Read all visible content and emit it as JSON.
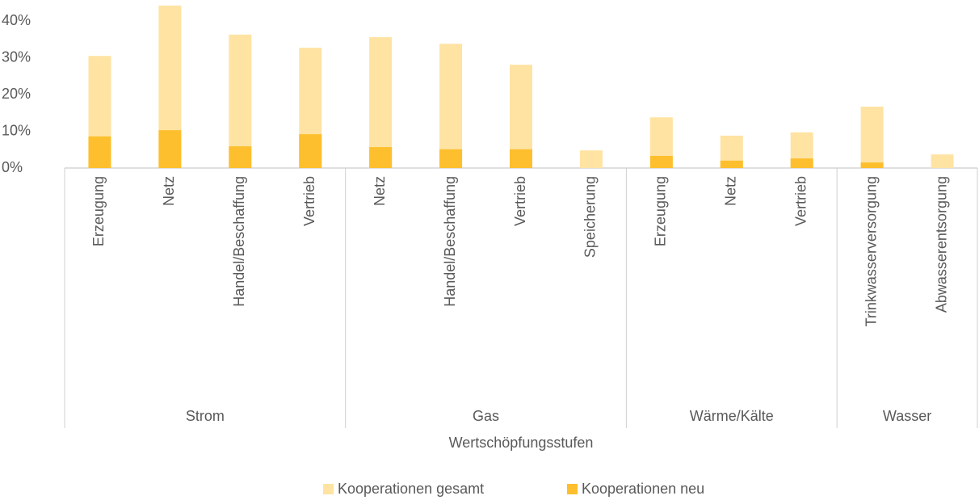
{
  "chart_data": {
    "type": "bar",
    "x_label": "Wertschöpfungsstufen",
    "groups": [
      {
        "name": "Strom",
        "categories": [
          "Erzeugung",
          "Netz",
          "Handel/Beschaffung",
          "Vertrieb"
        ]
      },
      {
        "name": "Gas",
        "categories": [
          "Netz",
          "Handel/Beschaffung",
          "Vertrieb",
          "Speicherung"
        ]
      },
      {
        "name": "Wärme/Kälte",
        "categories": [
          "Erzeugung",
          "Netz",
          "Vertrieb"
        ]
      },
      {
        "name": "Wasser",
        "categories": [
          "Trinkwasserversorgung",
          "Abwasserentsorgung"
        ]
      }
    ],
    "series": [
      {
        "name": "Kooperationen gesamt",
        "color": "#ffe3a3",
        "values": [
          30.5,
          44.2,
          36.3,
          32.7,
          35.6,
          33.8,
          28.1,
          4.8,
          13.8,
          8.8,
          9.7,
          16.7,
          3.7
        ]
      },
      {
        "name": "Kooperationen neu",
        "color": "#fdbf2d",
        "values": [
          8.6,
          10.3,
          5.9,
          9.2,
          5.7,
          5.1,
          5.1,
          0,
          3.3,
          2,
          2.6,
          1.5,
          0
        ]
      }
    ],
    "ylim": [
      0,
      45
    ],
    "yticks": [
      {
        "value": 0,
        "label": "0%"
      },
      {
        "value": 10,
        "label": "10%"
      },
      {
        "value": 20,
        "label": "20%"
      },
      {
        "value": 30,
        "label": "30%"
      },
      {
        "value": 40,
        "label": "40%"
      }
    ],
    "grid": false,
    "legend": "bottom"
  }
}
